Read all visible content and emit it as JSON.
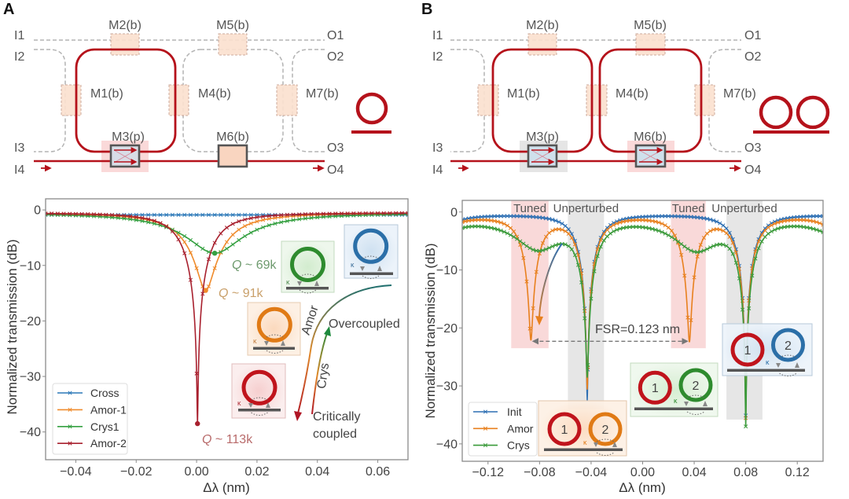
{
  "panel_labels": {
    "a": "A",
    "b": "B"
  },
  "colors": {
    "ring": "#b5121b",
    "coupler_fill": "#fbe1d0",
    "dashed_waveguide": "#b3b3b3",
    "band_tuned": "#f7c9c9",
    "band_unperturbed": "#dcdcdc"
  },
  "diagram_a": {
    "ports_in": [
      "I1",
      "I2",
      "I3",
      "I4"
    ],
    "ports_out": [
      "O1",
      "O2",
      "O3",
      "O4"
    ],
    "modules": [
      "M1(b)",
      "M2(b)",
      "M3(p)",
      "M4(b)",
      "M5(b)",
      "M6(b)",
      "M7(b)"
    ],
    "icon": "single-ring-icon"
  },
  "diagram_b": {
    "ports_in": [
      "I1",
      "I2",
      "I3",
      "I4"
    ],
    "ports_out": [
      "O1",
      "O2",
      "O3",
      "O4"
    ],
    "modules": [
      "M1(b)",
      "M2(b)",
      "M3(p)",
      "M4(b)",
      "M5(b)",
      "M6(b)",
      "M7(b)"
    ],
    "icon": "double-ring-icon"
  },
  "chart_data": [
    {
      "panel": "A",
      "type": "line",
      "title": "",
      "xlabel": "Δλ (nm)",
      "ylabel": "Normalized transmission (dB)",
      "xlim": [
        -0.05,
        0.07
      ],
      "ylim": [
        -45,
        2
      ],
      "xticks": [
        -0.04,
        -0.02,
        0,
        0.02,
        0.04,
        0.06
      ],
      "xtick_labels": [
        "−0.04",
        "−0.02",
        "0.00",
        "0.02",
        "0.04",
        "0.06"
      ],
      "yticks": [
        -40,
        -30,
        -20,
        -10,
        0
      ],
      "ytick_labels": [
        "−40",
        "−30",
        "−20",
        "−10",
        "0"
      ],
      "grid": false,
      "legend_position": "lower-left",
      "marker": "x",
      "model": "sum of Lorentzian dips in dB: baseline + Σ 10·log10(1 − A·γ²/((x−c)²+γ²))",
      "series": [
        {
          "name": "Cross",
          "color": "#2b78b8",
          "baseline_db": -0.9,
          "min_dot": false,
          "dips": []
        },
        {
          "name": "Amor-1",
          "color": "#ef8b2c",
          "baseline_db": -0.5,
          "min_dot": true,
          "dips": [
            {
              "center": 0.003,
              "min_db": -14.5,
              "hwhm": 0.0116
            }
          ]
        },
        {
          "name": "Crys1",
          "color": "#35a041",
          "baseline_db": -0.5,
          "min_dot": true,
          "dips": [
            {
              "center": 0.006,
              "min_db": -7.8,
              "hwhm": 0.018
            }
          ]
        },
        {
          "name": "Amor-2",
          "color": "#a8202e",
          "baseline_db": -0.5,
          "min_dot": true,
          "dips": [
            {
              "center": 0.0003,
              "min_db": -38.5,
              "hwhm": 0.009
            }
          ]
        }
      ],
      "sampled": {
        "x": [
          -0.05,
          -0.03,
          -0.02,
          -0.01,
          -0.005,
          0,
          0.005,
          0.01,
          0.02,
          0.03,
          0.04,
          0.06,
          0.07
        ],
        "Cross": [
          -0.9,
          -0.9,
          -0.9,
          -0.9,
          -0.9,
          -0.9,
          -0.9,
          -0.9,
          -0.9,
          -0.9,
          -0.9,
          -0.9,
          -0.9
        ],
        "Amor-1": [
          -0.7,
          -1.0,
          -1.4,
          -2.9,
          -5.1,
          -10.5,
          -12.2,
          -5.8,
          -2.1,
          -1.2,
          -0.9,
          -0.7,
          -0.6
        ],
        "Crys1": [
          -0.8,
          -1.3,
          -1.8,
          -3.1,
          -4.4,
          -6.2,
          -7.8,
          -7.0,
          -3.6,
          -2.0,
          -1.4,
          -0.9,
          -0.8
        ],
        "Amor-2": [
          -0.6,
          -0.9,
          -1.3,
          -3.0,
          -6.4,
          -38.5,
          -7.2,
          -3.2,
          -1.3,
          -0.9,
          -0.7,
          -0.6,
          -0.6
        ]
      },
      "annotations": {
        "q_labels": [
          {
            "q": "Q",
            "text": " ~ 69k",
            "series": "Crys1",
            "color": "#6d9a6d"
          },
          {
            "q": "Q",
            "text": " ~ 91k",
            "series": "Amor-1",
            "color": "#c9a06a"
          },
          {
            "q": "Q",
            "text": " ~ 113k",
            "series": "Amor-2",
            "color": "#b86a6a"
          }
        ],
        "arrow_amor": "Amor",
        "arrow_crys": "Crys",
        "overcoupled": "Overcoupled",
        "critically": "Critically",
        "coupled": "coupled",
        "kappa": "κ"
      },
      "insets": [
        {
          "ring_color": "#2e8b2e",
          "meaning": "Crys"
        },
        {
          "ring_color": "#2b6fa8",
          "meaning": "Cross"
        },
        {
          "ring_color": "#e07a15",
          "meaning": "Amor-1"
        },
        {
          "ring_color": "#c0141c",
          "meaning": "Amor-2"
        }
      ]
    },
    {
      "panel": "B",
      "type": "line",
      "title": "",
      "xlabel": "Δλ (nm)",
      "ylabel": "Normalized transmission (dB)",
      "xlim": [
        -0.14,
        0.14
      ],
      "ylim": [
        -43,
        2
      ],
      "xticks": [
        -0.12,
        -0.08,
        -0.04,
        0,
        0.04,
        0.08,
        0.12
      ],
      "xtick_labels": [
        "−0.12",
        "−0.08",
        "−0.04",
        "0.00",
        "0.04",
        "0.08",
        "0.12"
      ],
      "yticks": [
        -40,
        -30,
        -20,
        -10,
        0
      ],
      "ytick_labels": [
        "−40",
        "−30",
        "−20",
        "−10",
        "0"
      ],
      "grid": false,
      "legend_position": "lower-left",
      "marker": "x",
      "series": [
        {
          "name": "Init",
          "color": "#2d6fb3",
          "baseline_db": -0.3,
          "min_dot": false,
          "dips": [
            {
              "center": -0.166,
              "min_db": -32.3,
              "hwhm": 0.013
            },
            {
              "center": -0.043,
              "min_db": -32.3,
              "hwhm": 0.013
            },
            {
              "center": 0.08,
              "min_db": -35.0,
              "hwhm": 0.013
            },
            {
              "center": 0.203,
              "min_db": -35.0,
              "hwhm": 0.013
            }
          ]
        },
        {
          "name": "Amor",
          "color": "#e8801e",
          "baseline_db": -0.3,
          "min_dot": false,
          "dips": [
            {
              "center": -0.166,
              "min_db": -30.0,
              "hwhm": 0.013
            },
            {
              "center": -0.043,
              "min_db": -30.0,
              "hwhm": 0.013
            },
            {
              "center": 0.08,
              "min_db": -35.0,
              "hwhm": 0.013
            },
            {
              "center": 0.203,
              "min_db": -30.0,
              "hwhm": 0.013
            },
            {
              "center": -0.2097,
              "min_db": -21.5,
              "hwhm": 0.012
            },
            {
              "center": -0.0867,
              "min_db": -21.5,
              "hwhm": 0.012
            },
            {
              "center": 0.0363,
              "min_db": -21.8,
              "hwhm": 0.012
            },
            {
              "center": 0.1593,
              "min_db": -21.5,
              "hwhm": 0.012
            }
          ]
        },
        {
          "name": "Crys",
          "color": "#3a9a3a",
          "baseline_db": -0.3,
          "min_dot": false,
          "dips": [
            {
              "center": -0.166,
              "min_db": -26.5,
              "hwhm": 0.013
            },
            {
              "center": -0.043,
              "min_db": -26.5,
              "hwhm": 0.013
            },
            {
              "center": 0.08,
              "min_db": -35.0,
              "hwhm": 0.013
            },
            {
              "center": 0.203,
              "min_db": -26.5,
              "hwhm": 0.013
            },
            {
              "center": -0.2046,
              "min_db": -5.7,
              "hwhm": 0.03
            },
            {
              "center": -0.0816,
              "min_db": -5.7,
              "hwhm": 0.03
            },
            {
              "center": 0.0414,
              "min_db": -5.9,
              "hwhm": 0.03
            },
            {
              "center": 0.1644,
              "min_db": -5.7,
              "hwhm": 0.03
            }
          ]
        }
      ],
      "minima": [
        {
          "series": "Amor",
          "x": -0.0867,
          "y": -21.5
        },
        {
          "series": "Amor",
          "x": 0.0363,
          "y": -21.8
        },
        {
          "series": "Crys",
          "x": -0.0816,
          "y": -6.5
        },
        {
          "series": "Crys",
          "x": 0.0414,
          "y": -6.7
        },
        {
          "series": "Init",
          "x": -0.043,
          "y": -32.3
        },
        {
          "series": "Crys",
          "x": 0.08,
          "y": -35.0
        }
      ],
      "bands": [
        {
          "label": "Tuned",
          "kind": "tuned",
          "x": [
            -0.102,
            -0.073
          ],
          "y_min": -23.5
        },
        {
          "label": "Unperturbed",
          "kind": "unperturbed",
          "x": [
            -0.058,
            -0.03
          ],
          "y_min": -34.0
        },
        {
          "label": "Tuned",
          "kind": "tuned",
          "x": [
            0.022,
            0.049
          ],
          "y_min": -23.5
        },
        {
          "label": "Unperturbed",
          "kind": "unperturbed",
          "x": [
            0.065,
            0.093
          ],
          "y_min": -35.8
        }
      ],
      "fsr": {
        "label": "FSR=0.123 nm",
        "from": -0.0867,
        "to": 0.0363,
        "y_db": -22.3
      },
      "insets": [
        {
          "ring1_color": "#c0141c",
          "ring2_color": "#e07a15",
          "ring1_label": "1",
          "ring2_label": "2",
          "meaning": "Amor"
        },
        {
          "ring1_color": "#c0141c",
          "ring2_color": "#2e8b2e",
          "ring1_label": "1",
          "ring2_label": "2",
          "meaning": "Crys"
        },
        {
          "ring1_color": "#c0141c",
          "ring2_color": "#2b6fa8",
          "ring1_label": "1",
          "ring2_label": "2",
          "meaning": "Init"
        }
      ],
      "kappa": "κ"
    }
  ]
}
